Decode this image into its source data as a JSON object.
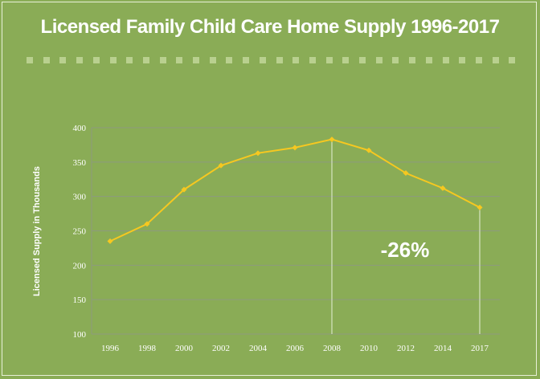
{
  "title": "Licensed Family Child Care Home Supply 1996-2017",
  "colors": {
    "background": "#8aac56",
    "line": "#f6c820",
    "grid": "#8d9a7f",
    "text": "#ffffff",
    "dots": "#b9d08f"
  },
  "chart_data": {
    "type": "line",
    "title": "Licensed Family Child Care Home Supply 1996-2017",
    "xlabel": "",
    "ylabel": "Licensed Supply in Thousands",
    "categories": [
      "1996",
      "1998",
      "2000",
      "2002",
      "2004",
      "2006",
      "2008",
      "2010",
      "2012",
      "2014",
      "2017"
    ],
    "values": [
      235,
      260,
      310,
      345,
      363,
      371,
      383,
      367,
      334,
      312,
      284
    ],
    "ylim": [
      100,
      400
    ],
    "yticks": [
      100,
      150,
      200,
      250,
      300,
      350,
      400
    ],
    "grid": true,
    "annotation": "-26%",
    "reference_lines_at": [
      "2008",
      "2017"
    ]
  }
}
